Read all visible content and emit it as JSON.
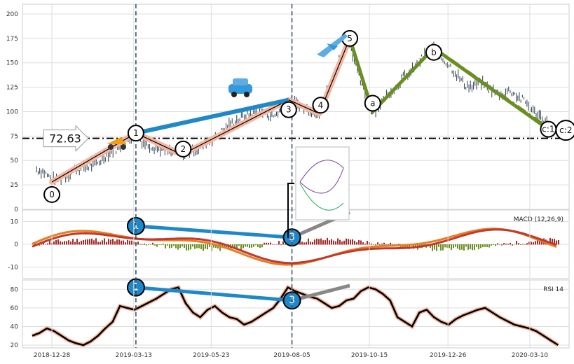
{
  "chart_data": [
    {
      "type": "candlestick",
      "panel": "price",
      "x_ticks": [
        "2018-12-28",
        "2019-03-13",
        "2019-05-23",
        "2019-08-05",
        "2019-10-15",
        "2019-12-26",
        "2020-03-10"
      ],
      "ylim": [
        0,
        210
      ],
      "y_ticks": [
        0,
        25,
        50,
        75,
        100,
        125,
        150,
        175,
        200
      ],
      "grid": true,
      "series": [
        {
          "points": [
            [
              "2018-12-14",
              41
            ],
            [
              "2018-12-21",
              38
            ],
            [
              "2018-12-28",
              30
            ],
            [
              "2019-01-04",
              32
            ],
            [
              "2019-01-11",
              35
            ],
            [
              "2019-01-18",
              40
            ],
            [
              "2019-01-25",
              42
            ],
            [
              "2019-02-01",
              44
            ],
            [
              "2019-02-08",
              47
            ],
            [
              "2019-02-15",
              55
            ],
            [
              "2019-02-22",
              60
            ],
            [
              "2019-03-01",
              65
            ],
            [
              "2019-03-08",
              70
            ],
            [
              "2019-03-15",
              78
            ],
            [
              "2019-03-22",
              68
            ],
            [
              "2019-03-29",
              65
            ],
            [
              "2019-04-05",
              62
            ],
            [
              "2019-04-12",
              60
            ],
            [
              "2019-04-19",
              58
            ],
            [
              "2019-04-26",
              56
            ],
            [
              "2019-05-03",
              58
            ],
            [
              "2019-05-10",
              62
            ],
            [
              "2019-05-17",
              66
            ],
            [
              "2019-05-24",
              72
            ],
            [
              "2019-05-31",
              78
            ],
            [
              "2019-06-07",
              85
            ],
            [
              "2019-06-14",
              90
            ],
            [
              "2019-06-21",
              95
            ],
            [
              "2019-06-28",
              98
            ],
            [
              "2019-07-05",
              100
            ],
            [
              "2019-07-12",
              98
            ],
            [
              "2019-07-19",
              95
            ],
            [
              "2019-07-26",
              102
            ],
            [
              "2019-08-02",
              110
            ],
            [
              "2019-08-09",
              108
            ],
            [
              "2019-08-16",
              104
            ],
            [
              "2019-08-23",
              100
            ],
            [
              "2019-08-30",
              98
            ],
            [
              "2019-09-06",
              120
            ],
            [
              "2019-09-13",
              140
            ],
            [
              "2019-09-20",
              160
            ],
            [
              "2019-09-27",
              172
            ],
            [
              "2019-10-04",
              140
            ],
            [
              "2019-10-11",
              118
            ],
            [
              "2019-10-18",
              100
            ],
            [
              "2019-10-25",
              108
            ],
            [
              "2019-11-01",
              118
            ],
            [
              "2019-11-08",
              125
            ],
            [
              "2019-11-15",
              135
            ],
            [
              "2019-11-22",
              140
            ],
            [
              "2019-11-29",
              150
            ],
            [
              "2019-12-06",
              160
            ],
            [
              "2019-12-13",
              165
            ],
            [
              "2019-12-20",
              155
            ],
            [
              "2019-12-27",
              148
            ],
            [
              "2020-01-03",
              138
            ],
            [
              "2020-01-10",
              128
            ],
            [
              "2020-01-17",
              125
            ],
            [
              "2020-01-24",
              130
            ],
            [
              "2020-01-31",
              125
            ],
            [
              "2020-02-07",
              120
            ],
            [
              "2020-02-14",
              118
            ],
            [
              "2020-02-21",
              122
            ],
            [
              "2020-02-28",
              115
            ],
            [
              "2020-03-06",
              110
            ],
            [
              "2020-03-13",
              100
            ],
            [
              "2020-03-20",
              95
            ],
            [
              "2020-03-27",
              88
            ],
            [
              "2020-04-03",
              80
            ]
          ]
        }
      ],
      "hline": {
        "value": 72.63,
        "label": "72.63"
      },
      "vlines": [
        "2019-03-15",
        "2019-08-05"
      ],
      "waves": [
        {
          "label": "0",
          "date": "2018-12-28",
          "price": 28
        },
        {
          "label": "1",
          "date": "2019-03-15",
          "price": 78
        },
        {
          "label": "2",
          "date": "2019-04-26",
          "price": 56
        },
        {
          "label": "3",
          "date": "2019-08-02",
          "price": 112
        },
        {
          "label": "4",
          "date": "2019-08-30",
          "price": 98
        },
        {
          "label": "5",
          "date": "2019-09-27",
          "price": 175
        },
        {
          "label": "a",
          "date": "2019-10-18",
          "price": 100
        },
        {
          "label": "b",
          "date": "2019-12-13",
          "price": 165
        },
        {
          "label": "c:1",
          "date": "2020-03-27",
          "price": 82
        },
        {
          "label": "c:2",
          "date": "2020-04-03",
          "price": 78
        }
      ]
    },
    {
      "type": "bar+line",
      "panel": "macd",
      "legend": "MACD (12,26,9)",
      "ylim": [
        -15,
        15
      ],
      "y_ticks": [
        -10,
        0,
        10
      ],
      "grid": true,
      "markers": [
        {
          "label": "1",
          "date": "2019-03-15",
          "value": 8
        },
        {
          "label": "3",
          "date": "2019-08-05",
          "value": 3
        }
      ]
    },
    {
      "type": "line",
      "panel": "rsi",
      "legend": "RSI 14",
      "ylim": [
        17,
        90
      ],
      "y_ticks": [
        20,
        40,
        60,
        80
      ],
      "grid": true,
      "series": [
        {
          "values": [
            30,
            33,
            38,
            35,
            30,
            25,
            22,
            20,
            24,
            30,
            38,
            45,
            62,
            60,
            58,
            62,
            66,
            70,
            75,
            80,
            82,
            65,
            55,
            50,
            58,
            62,
            55,
            50,
            48,
            42,
            45,
            50,
            55,
            60,
            70,
            82,
            78,
            75,
            72,
            70,
            65,
            60,
            62,
            68,
            70,
            78,
            82,
            80,
            75,
            68,
            50,
            45,
            40,
            55,
            58,
            50,
            45,
            42,
            48,
            52,
            55,
            58,
            60,
            55,
            50,
            46,
            42,
            40,
            38,
            35,
            30,
            25,
            20
          ]
        }
      ],
      "markers": [
        {
          "label": "1",
          "date": "2019-03-15",
          "value": 82
        },
        {
          "label": "3",
          "date": "2019-08-05",
          "value": 68
        }
      ]
    }
  ]
}
